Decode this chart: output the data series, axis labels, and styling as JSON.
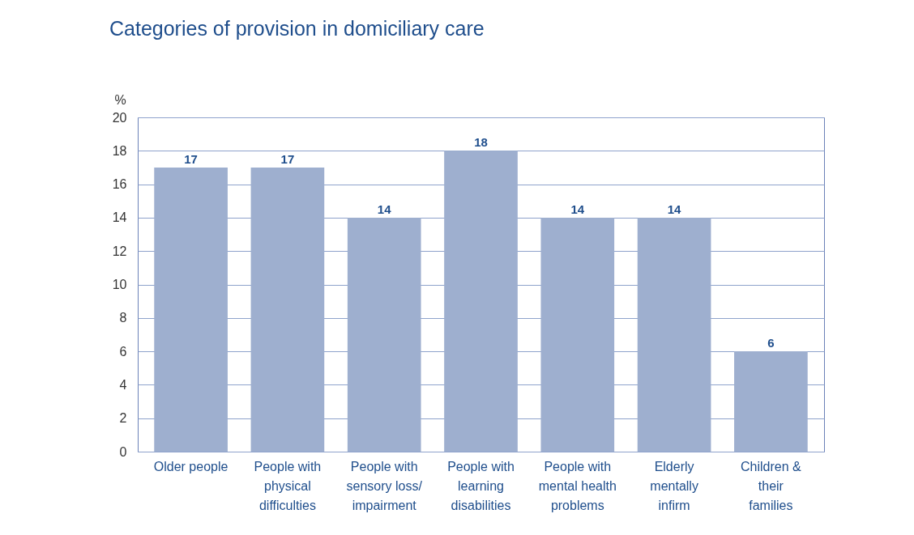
{
  "chart_data": {
    "type": "bar",
    "title": "Categories of provision in domiciliary care",
    "ylabel": "%",
    "categories": [
      "Older people",
      "People with physical difficulties",
      "People with sensory loss/ impairment",
      "People with learning disabilities",
      "People with mental health problems",
      "Elderly mentally infirm",
      "Children & their families"
    ],
    "values": [
      17,
      17,
      14,
      18,
      14,
      14,
      6
    ],
    "color": "#9eafcf",
    "ylim": [
      0,
      20
    ],
    "yticks": [
      0,
      2,
      4,
      6,
      8,
      10,
      12,
      14,
      16,
      18,
      20
    ],
    "grid": "y",
    "data_labels": true
  }
}
